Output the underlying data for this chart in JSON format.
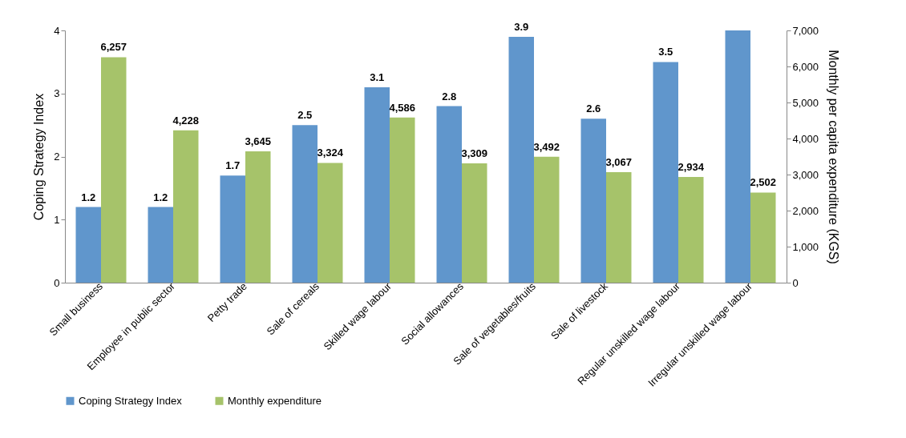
{
  "chart_data": {
    "type": "bar",
    "categories": [
      "Small business",
      "Employee in public sector",
      "Petty trade",
      "Sale of cereals",
      "Skilled wage labour",
      "Social allowances",
      "Sale of vegetables/fruits",
      "Sale of livestock",
      "Regular unskilled wage labour",
      "Irregular unskilled wage labour"
    ],
    "ylabel": "Coping Strategy Index",
    "y2label": "Monthly per capita expenditure (KGS)",
    "ylim": [
      0,
      4
    ],
    "yticks": [
      0,
      1,
      2,
      3,
      4
    ],
    "y2lim": [
      0,
      7000
    ],
    "y2ticks": [
      0,
      {
        "value": 1000,
        "label": "1,000"
      },
      {
        "value": 2000,
        "label": "2,000"
      },
      {
        "value": 3000,
        "label": "3,000"
      },
      {
        "value": 4000,
        "label": "4,000"
      },
      {
        "value": 5000,
        "label": "5,000"
      },
      {
        "value": 6000,
        "label": "6,000"
      },
      {
        "value": 7000,
        "label": "7,000"
      }
    ],
    "legend": "bottom",
    "grid": false,
    "series": [
      {
        "name": "Coping Strategy Index",
        "color": "#6096cc",
        "values": [
          1.2,
          1.2,
          1.7,
          2.5,
          3.1,
          2.8,
          3.9,
          2.6,
          3.5,
          4.0
        ],
        "value_labels": [
          "1.2",
          "1.2",
          "1.7",
          "2.5",
          "3.1",
          "2.8",
          "3.9",
          "2.6",
          "3.5",
          null
        ]
      },
      {
        "name": "Monthly expenditure",
        "color": "#a6c36a",
        "axis": "y2",
        "values": [
          6257,
          4228,
          3645,
          3324,
          4586,
          3309,
          3492,
          3067,
          2934,
          2502
        ],
        "value_labels": [
          "6,257",
          "4,228",
          "3,645",
          "3,324",
          "4,586",
          "3,309",
          "3,492",
          "3,067",
          "2,934",
          "2,502"
        ]
      }
    ]
  }
}
